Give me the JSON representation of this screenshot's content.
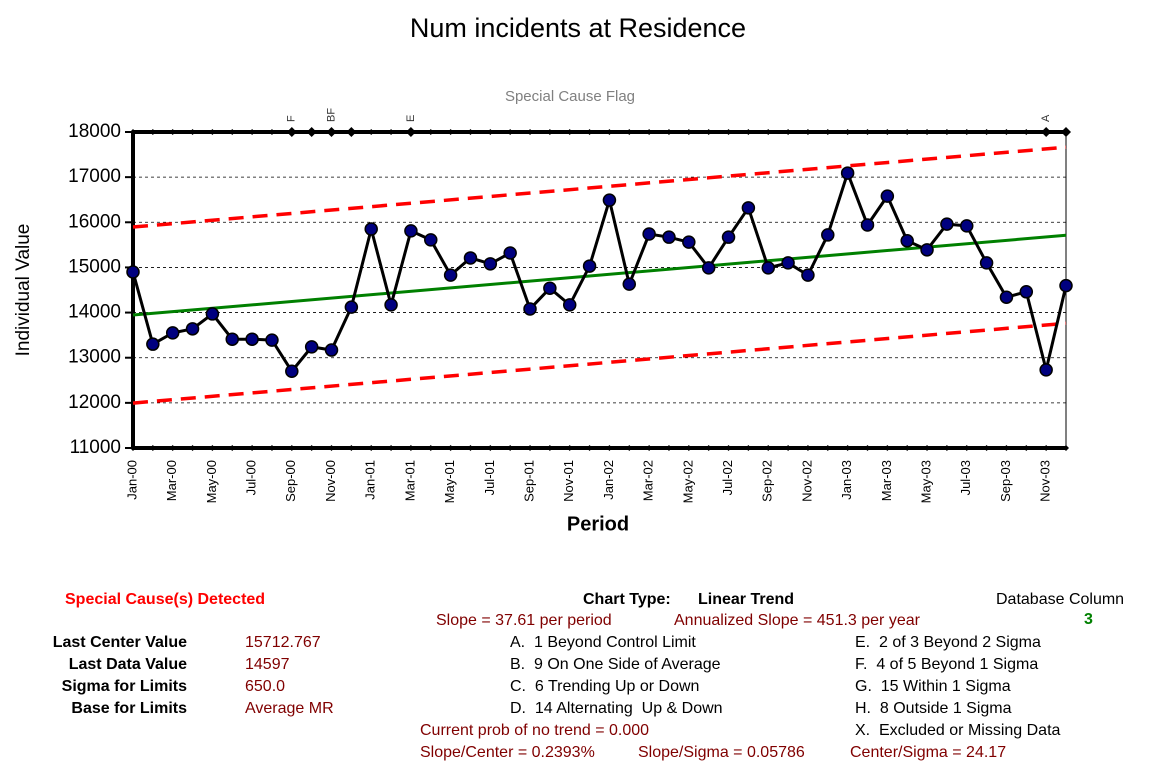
{
  "chart_data": {
    "type": "control",
    "title": "Num incidents at Residence",
    "subtitle": "Special Cause Flag",
    "x_label": "Period",
    "y_label": "Individual Value",
    "categories": [
      "Jan-00",
      null,
      "Mar-00",
      null,
      "May-00",
      null,
      "Jul-00",
      null,
      "Sep-00",
      null,
      "Nov-00",
      null,
      "Jan-01",
      null,
      "Mar-01",
      null,
      "May-01",
      null,
      "Jul-01",
      null,
      "Sep-01",
      null,
      "Nov-01",
      null,
      "Jan-02",
      null,
      "Mar-02",
      null,
      "May-02",
      null,
      "Jul-02",
      null,
      "Sep-02",
      null,
      "Nov-02",
      null,
      "Jan-03",
      null,
      "Mar-03",
      null,
      "May-03",
      null,
      "Jul-03",
      null,
      "Sep-03",
      null,
      "Nov-03",
      null
    ],
    "values": [
      14900,
      13300,
      13550,
      13640,
      13970,
      13410,
      13410,
      13390,
      12700,
      13240,
      13170,
      14120,
      15850,
      14170,
      15810,
      15610,
      14830,
      15210,
      15080,
      15320,
      14080,
      14540,
      14170,
      15030,
      16490,
      14630,
      15740,
      15670,
      15560,
      14990,
      15670,
      16320,
      14990,
      15100,
      14830,
      15720,
      17090,
      15940,
      16580,
      15590,
      15390,
      15960,
      15920,
      15100,
      14340,
      14460,
      12730,
      14597
    ],
    "color": "#00007f",
    "center_line": {
      "start": 13945,
      "end": 15712.767,
      "color": "#008000"
    },
    "ucl": {
      "start": 15895,
      "end": 17662.767,
      "color": "#ff0000"
    },
    "lcl": {
      "start": 11995,
      "end": 13762.767,
      "color": "#ff0000"
    },
    "flags": [
      {
        "index": 8,
        "label": "F"
      },
      {
        "index": 10,
        "label": "BF"
      },
      {
        "index": 14,
        "label": "E"
      },
      {
        "index": 46,
        "label": "A"
      }
    ],
    "flag_markers": [
      8,
      9,
      10,
      11,
      14,
      46,
      47
    ],
    "ylim": [
      11000,
      18000
    ],
    "yticks": [
      11000,
      12000,
      13000,
      14000,
      15000,
      16000,
      17000,
      18000
    ],
    "grid": true
  },
  "panel": {
    "special_cause": "Special Cause(s) Detected",
    "chart_type_label": "Chart Type:",
    "chart_type": "Linear Trend",
    "database_column_label": "Database Column",
    "database_column": "3",
    "slope": "Slope = 37.61 per period",
    "annualized_slope": "Annualized Slope = 451.3 per year",
    "stats": [
      {
        "label": "Last Center Value",
        "value": "15712.767"
      },
      {
        "label": "Last Data Value",
        "value": "14597"
      },
      {
        "label": "Sigma for Limits",
        "value": "650.0"
      },
      {
        "label": "Base for Limits",
        "value": "Average MR"
      }
    ],
    "rules_left": [
      "A.  1 Beyond Control Limit",
      "B.  9 On One Side of Average",
      "C.  6 Trending Up or Down",
      "D.  14 Alternating  Up & Down"
    ],
    "rules_right": [
      "E.  2 of 3 Beyond 2 Sigma",
      "F.  4 of 5 Beyond 1 Sigma",
      "G.  15 Within 1 Sigma",
      "H.  8 Outside 1 Sigma",
      "X.  Excluded or Missing Data"
    ],
    "prob_no_trend": "Current prob of no trend = 0.000",
    "slope_center": "Slope/Center = 0.2393%",
    "slope_sigma": "Slope/Sigma = 0.05786",
    "center_sigma": "Center/Sigma = 24.17"
  }
}
